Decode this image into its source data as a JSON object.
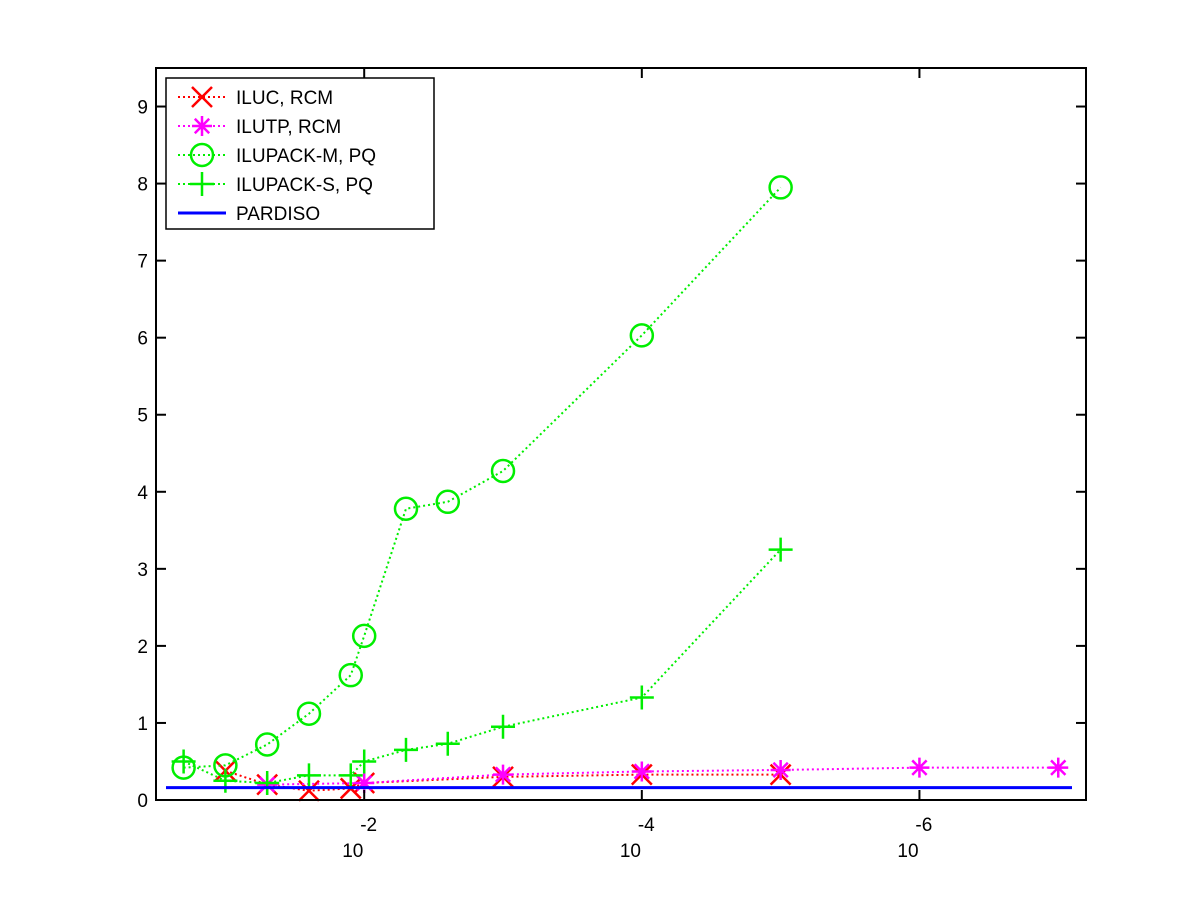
{
  "chart_data": {
    "type": "line",
    "title": "",
    "xlabel": "",
    "ylabel": "",
    "x_scale": "log",
    "x_reversed": true,
    "xlim": [
      0.3162,
      6.31e-08
    ],
    "ylim": [
      0,
      9.5
    ],
    "x_ticks": [
      {
        "value": 0.01,
        "base": "10",
        "exponent": "-2"
      },
      {
        "value": 0.0001,
        "base": "10",
        "exponent": "-4"
      },
      {
        "value": 1e-06,
        "base": "10",
        "exponent": "-6"
      }
    ],
    "y_ticks": [
      "0",
      "1",
      "2",
      "3",
      "4",
      "5",
      "6",
      "7",
      "8",
      "9"
    ],
    "y_tick_values": [
      0,
      1,
      2,
      3,
      4,
      5,
      6,
      7,
      8,
      9
    ],
    "legend_position": "top-left",
    "grid": false,
    "series": [
      {
        "name": "ILUC, RCM",
        "color": "#ff0000",
        "marker": "x",
        "line_style": "dotted",
        "points": [
          [
            0.1,
            0.38
          ],
          [
            0.05,
            0.2
          ],
          [
            0.025,
            0.12
          ],
          [
            0.0125,
            0.15
          ],
          [
            0.01,
            0.22
          ],
          [
            0.001,
            0.3
          ],
          [
            0.0001,
            0.33
          ],
          [
            1e-05,
            0.33
          ]
        ]
      },
      {
        "name": "ILUTP, RCM",
        "color": "#ff00ff",
        "marker": "asterisk",
        "line_style": "dotted",
        "points": [
          [
            0.05,
            0.2
          ],
          [
            0.01,
            0.22
          ],
          [
            0.001,
            0.33
          ],
          [
            0.0001,
            0.37
          ],
          [
            1e-05,
            0.39
          ],
          [
            1e-06,
            0.42
          ],
          [
            1e-07,
            0.42
          ]
        ]
      },
      {
        "name": "ILUPACK-M, PQ",
        "color": "#00ee00",
        "marker": "circle",
        "line_style": "dotted",
        "points": [
          [
            0.2,
            0.42
          ],
          [
            0.1,
            0.45
          ],
          [
            0.05,
            0.72
          ],
          [
            0.025,
            1.12
          ],
          [
            0.0125,
            1.62
          ],
          [
            0.01,
            2.13
          ],
          [
            0.005,
            3.78
          ],
          [
            0.0025,
            3.87
          ],
          [
            0.001,
            4.27
          ],
          [
            0.0001,
            6.03
          ],
          [
            1e-05,
            7.95
          ]
        ]
      },
      {
        "name": "ILUPACK-S, PQ",
        "color": "#00ee00",
        "marker": "plus",
        "line_style": "dotted",
        "points": [
          [
            0.2,
            0.5
          ],
          [
            0.1,
            0.25
          ],
          [
            0.05,
            0.22
          ],
          [
            0.025,
            0.32
          ],
          [
            0.0125,
            0.32
          ],
          [
            0.01,
            0.5
          ],
          [
            0.005,
            0.65
          ],
          [
            0.0025,
            0.73
          ],
          [
            0.001,
            0.95
          ],
          [
            0.0001,
            1.33
          ],
          [
            1e-05,
            3.25
          ]
        ]
      },
      {
        "name": "PARDISO",
        "color": "#0000ff",
        "marker": "none",
        "line_style": "solid",
        "constant": 0.16
      }
    ]
  }
}
